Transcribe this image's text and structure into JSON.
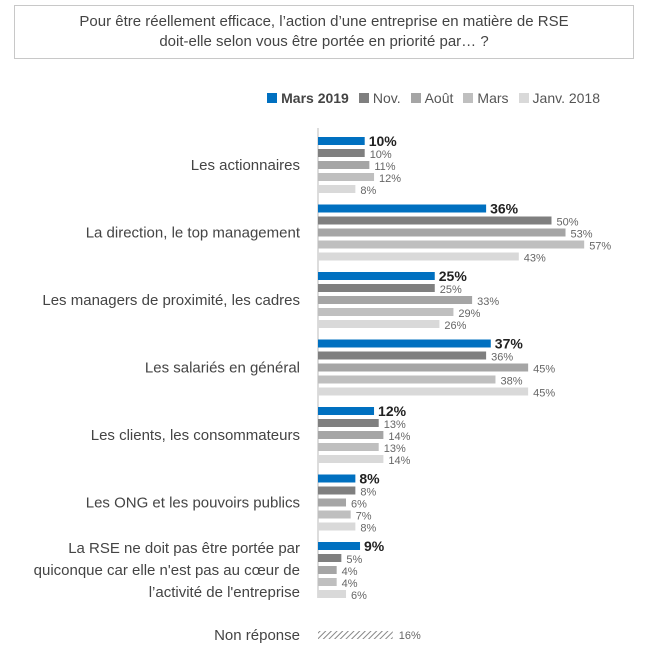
{
  "title": "Pour être réellement efficace, l’action d’une entreprise en matière de RSE doit-elle selon vous être portée en priorité par… ?",
  "title_lines": [
    "Pour être réellement efficace, l’action d’une entreprise en matière de RSE",
    "doit-elle selon vous être portée en priorité par… ?"
  ],
  "chart_data": {
    "type": "bar",
    "orientation": "horizontal",
    "unit": "%",
    "legend_position": "top-right",
    "grid": false,
    "xlim": [
      0,
      60
    ],
    "categories": [
      [
        "Les actionnaires"
      ],
      [
        "La direction, le top management"
      ],
      [
        "Les managers de proximité, les cadres"
      ],
      [
        "Les salariés en général"
      ],
      [
        "Les clients, les consommateurs"
      ],
      [
        "Les ONG et les pouvoirs publics"
      ],
      [
        "La RSE ne doit pas être portée par",
        "quiconque car elle n'est pas au cœur de",
        "l’activité de l'entreprise"
      ]
    ],
    "series": [
      {
        "name": "Mars 2019",
        "color": "#0070c0",
        "values": [
          10,
          36,
          25,
          37,
          12,
          8,
          9
        ]
      },
      {
        "name": "Nov.",
        "color": "#7f7f7f",
        "values": [
          10,
          50,
          25,
          36,
          13,
          8,
          5
        ]
      },
      {
        "name": "Août",
        "color": "#a5a5a5",
        "values": [
          11,
          53,
          33,
          45,
          14,
          6,
          4
        ]
      },
      {
        "name": "Mars",
        "color": "#bfbfbf",
        "values": [
          12,
          57,
          29,
          38,
          13,
          7,
          4
        ]
      },
      {
        "name": "Janv. 2018",
        "color": "#d9d9d9",
        "values": [
          8,
          43,
          26,
          45,
          14,
          8,
          6
        ]
      }
    ],
    "non_response": {
      "label": "Non réponse",
      "value": 16,
      "pattern": "hatched"
    }
  }
}
